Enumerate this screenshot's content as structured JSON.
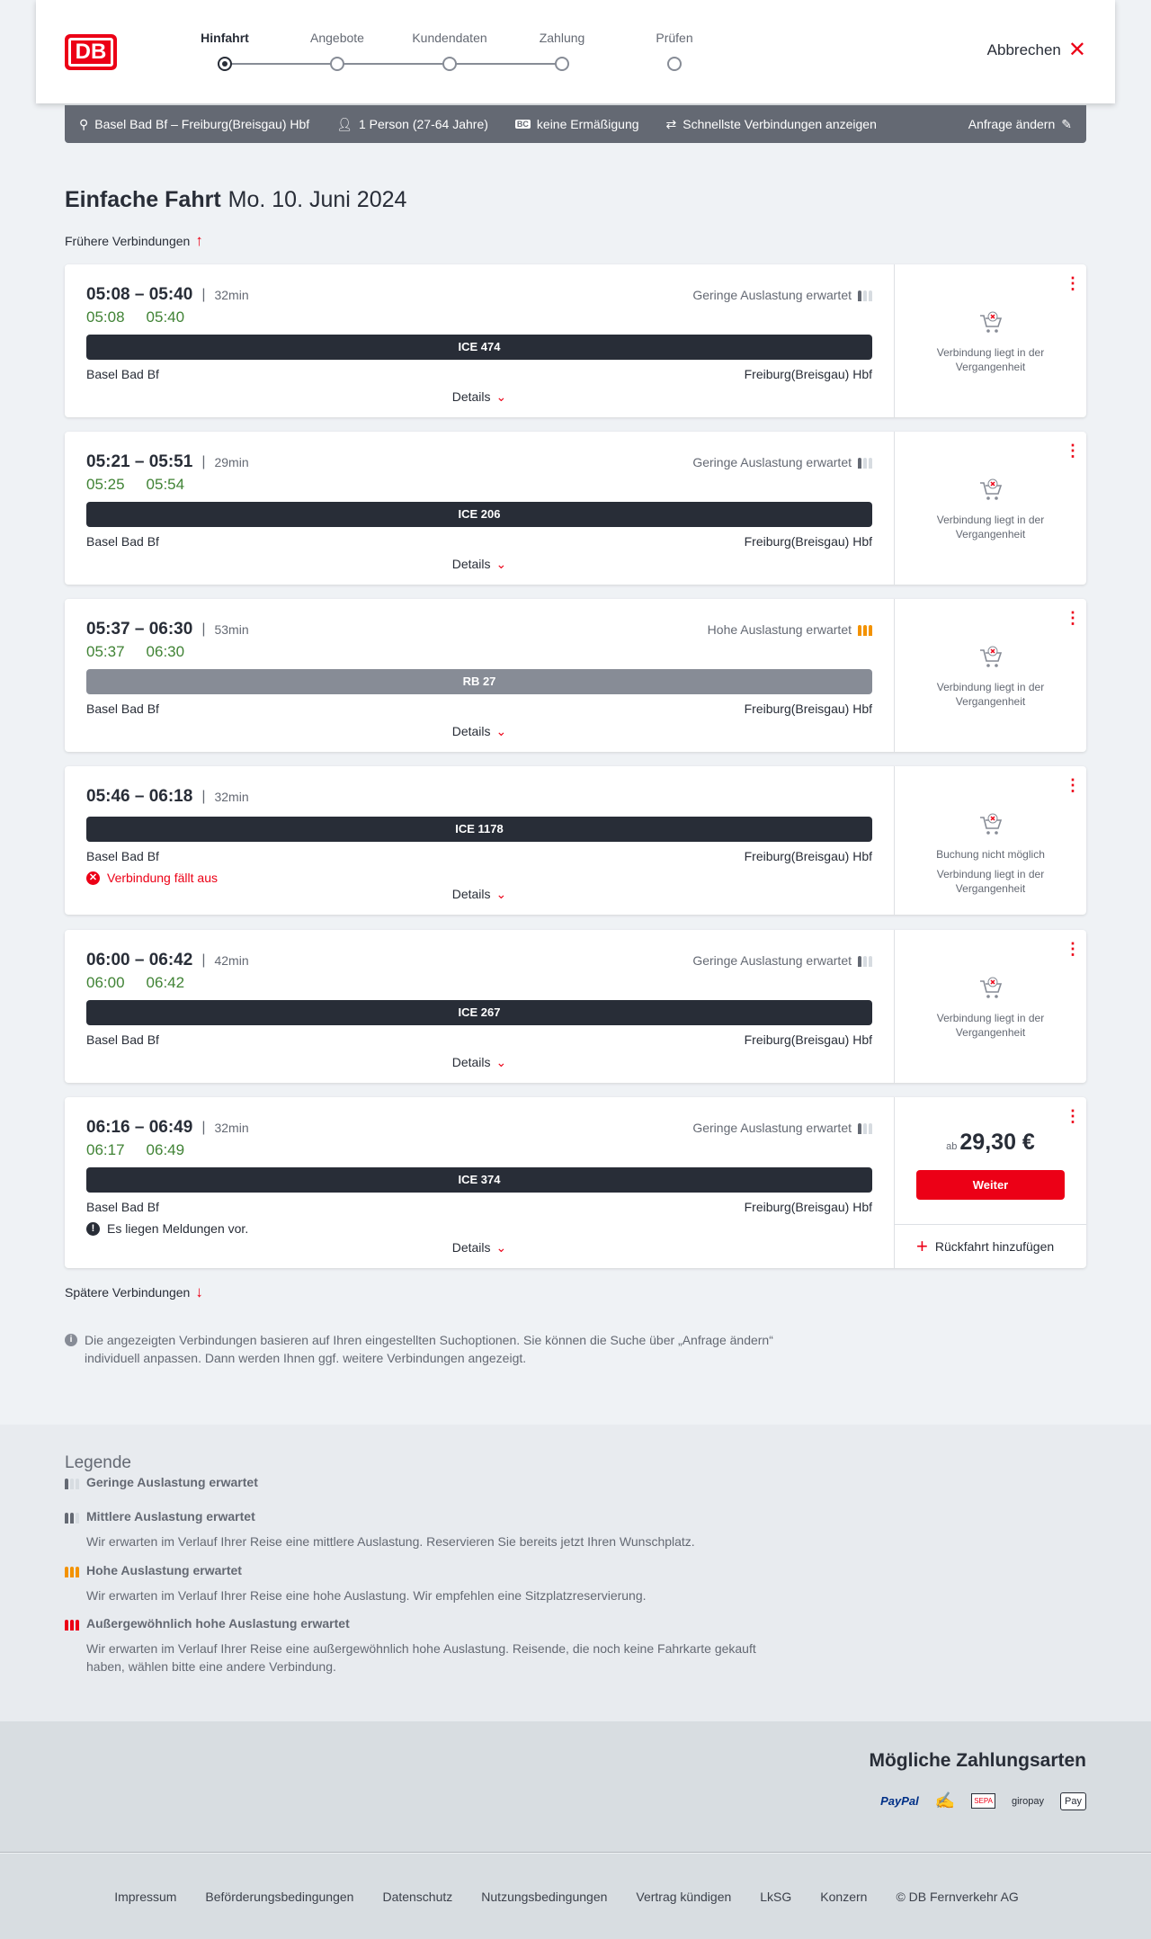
{
  "header": {
    "logo_text": "DB",
    "steps": [
      {
        "label": "Hinfahrt",
        "active": true
      },
      {
        "label": "Angebote",
        "active": false
      },
      {
        "label": "Kundendaten",
        "active": false
      },
      {
        "label": "Zahlung",
        "active": false
      },
      {
        "label": "Prüfen",
        "active": false
      }
    ],
    "cancel_label": "Abbrechen"
  },
  "search_summary": {
    "route": "Basel Bad Bf – Freiburg(Breisgau) Hbf",
    "passengers": "1 Person (27-64 Jahre)",
    "discount": "keine Ermäßigung",
    "option": "Schnellste Verbindungen anzeigen",
    "edit_label": "Anfrage ändern"
  },
  "title": {
    "trip_type": "Einfache Fahrt",
    "date": "Mo. 10. Juni 2024"
  },
  "earlier_label": "Frühere Verbindungen",
  "later_label": "Spätere Verbindungen",
  "details_label": "Details",
  "connections": [
    {
      "times": "05:08 – 05:40",
      "duration": "32min",
      "occupancy": "Geringe Auslastung erwartet",
      "occupancy_level": "low",
      "real_dep": "05:08",
      "real_arr": "05:40",
      "train": "ICE 474",
      "train_type": "long-distance",
      "from": "Basel Bad Bf",
      "to": "Freiburg(Breisgau) Hbf",
      "status": "Verbindung liegt in der Vergangenheit"
    },
    {
      "times": "05:21 – 05:51",
      "duration": "29min",
      "occupancy": "Geringe Auslastung erwartet",
      "occupancy_level": "low",
      "real_dep": "05:25",
      "real_arr": "05:54",
      "train": "ICE 206",
      "train_type": "long-distance",
      "from": "Basel Bad Bf",
      "to": "Freiburg(Breisgau) Hbf",
      "status": "Verbindung liegt in der Vergangenheit"
    },
    {
      "times": "05:37 – 06:30",
      "duration": "53min",
      "occupancy": "Hohe Auslastung erwartet",
      "occupancy_level": "high",
      "real_dep": "05:37",
      "real_arr": "06:30",
      "train": "RB 27",
      "train_type": "regional",
      "from": "Basel Bad Bf",
      "to": "Freiburg(Breisgau) Hbf",
      "status": "Verbindung liegt in der Vergangenheit"
    },
    {
      "times": "05:46 – 06:18",
      "duration": "32min",
      "train": "ICE 1178",
      "train_type": "long-distance",
      "from": "Basel Bad Bf",
      "to": "Freiburg(Breisgau) Hbf",
      "message": "Verbindung fällt aus",
      "message_type": "cancelled",
      "booking_note": "Buchung nicht möglich",
      "status": "Verbindung liegt in der Vergangenheit"
    },
    {
      "times": "06:00 – 06:42",
      "duration": "42min",
      "occupancy": "Geringe Auslastung erwartet",
      "occupancy_level": "low",
      "real_dep": "06:00",
      "real_arr": "06:42",
      "train": "ICE 267",
      "train_type": "long-distance",
      "from": "Basel Bad Bf",
      "to": "Freiburg(Breisgau) Hbf",
      "status": "Verbindung liegt in der Vergangenheit"
    },
    {
      "times": "06:16 – 06:49",
      "duration": "32min",
      "occupancy": "Geringe Auslastung erwartet",
      "occupancy_level": "low",
      "real_dep": "06:17",
      "real_arr": "06:49",
      "train": "ICE 374",
      "train_type": "long-distance",
      "from": "Basel Bad Bf",
      "to": "Freiburg(Breisgau) Hbf",
      "message": "Es liegen Meldungen vor.",
      "message_type": "info",
      "price_prefix": "ab",
      "price": "29,30 €",
      "continue_label": "Weiter",
      "return_label": "Rückfahrt hinzufügen"
    }
  ],
  "note": "Die angezeigten Verbindungen basieren auf Ihren eingestellten Suchoptionen. Sie können die Suche über „Anfrage ändern“ individuell anpassen. Dann werden Ihnen ggf. weitere Verbindungen angezeigt.",
  "legend": {
    "title": "Legende",
    "items": [
      {
        "level": "low",
        "title": "Geringe Auslastung erwartet",
        "text": ""
      },
      {
        "level": "mid",
        "title": "Mittlere Auslastung erwartet",
        "text": "Wir erwarten im Verlauf Ihrer Reise eine mittlere Auslastung. Reservieren Sie bereits jetzt Ihren Wunschplatz."
      },
      {
        "level": "high",
        "title": "Hohe Auslastung erwartet",
        "text": "Wir erwarten im Verlauf Ihrer Reise eine hohe Auslastung. Wir empfehlen eine Sitzplatzreservierung."
      },
      {
        "level": "extra",
        "title": "Außergewöhnlich hohe Auslastung erwartet",
        "text": "Wir erwarten im Verlauf Ihrer Reise eine außergewöhnlich hohe Auslastung. Reisende, die noch keine Fahrkarte gekauft haben, wählen bitte eine andere Verbindung."
      }
    ]
  },
  "payment": {
    "title": "Mögliche Zahlungsarten",
    "methods": [
      "PayPal",
      "credit-card-icon",
      "SEPA",
      "giropay",
      "Pay"
    ]
  },
  "footer": {
    "links": [
      "Impressum",
      "Beförderungsbedingungen",
      "Datenschutz",
      "Nutzungsbedingungen",
      "Vertrag kündigen",
      "LkSG",
      "Konzern",
      "© DB Fernverkehr AG"
    ]
  },
  "colors": {
    "brand": "#ec0016",
    "realtime": "#408335",
    "train_bar": "#282d37",
    "regional_bar": "#878c96",
    "high_occupancy": "#f39200"
  }
}
